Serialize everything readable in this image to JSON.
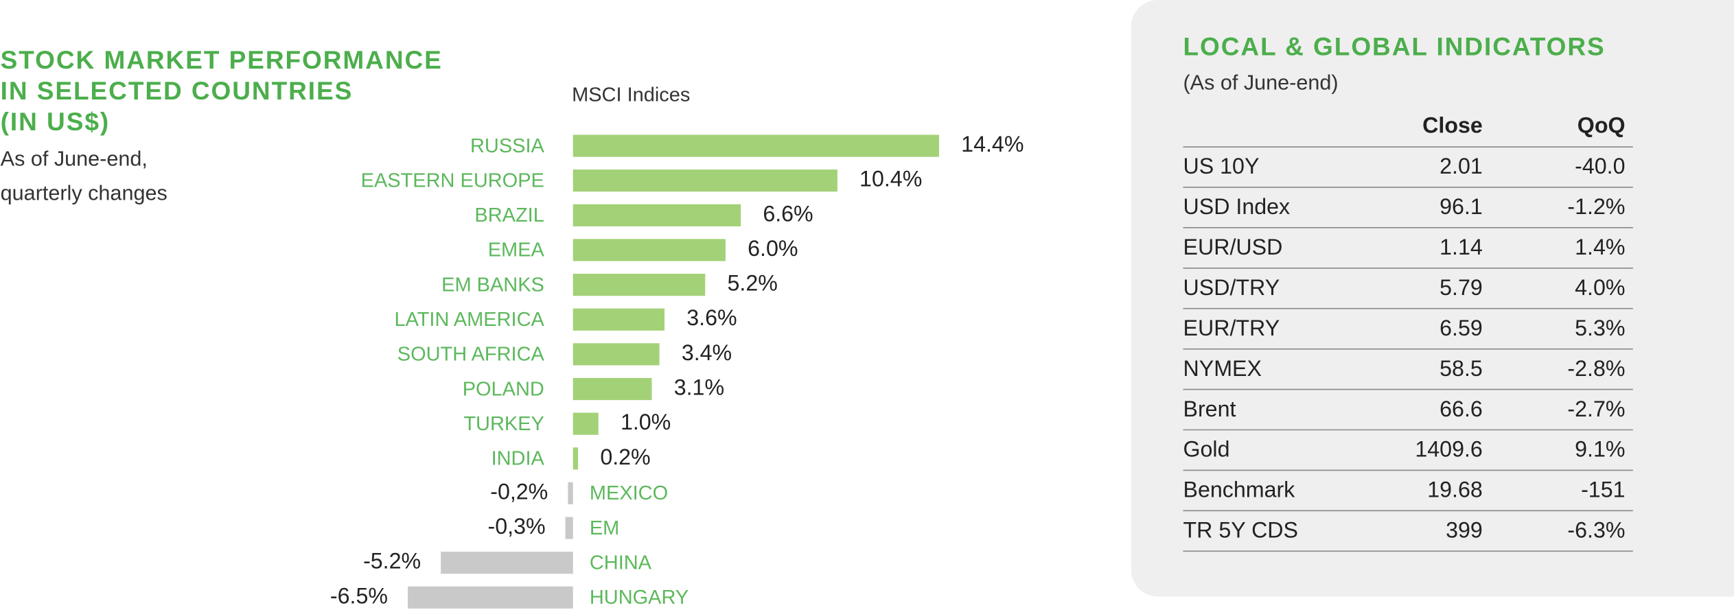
{
  "chart_data": {
    "type": "bar",
    "orientation": "horizontal",
    "title": [
      "STOCK MARKET PERFORMANCE",
      "IN SELECTED COUNTRIES",
      "(IN US$)"
    ],
    "subtitle": [
      "As of June-end,",
      "quarterly changes"
    ],
    "axis_label": "MSCI Indices",
    "categories": [
      "RUSSIA",
      "EASTERN EUROPE",
      "BRAZIL",
      "EMEA",
      "EM BANKS",
      "LATIN AMERICA",
      "SOUTH AFRICA",
      "POLAND",
      "TURKEY",
      "INDIA",
      "MEXICO",
      "EM",
      "CHINA",
      "HUNGARY"
    ],
    "values": [
      14.4,
      10.4,
      6.6,
      6.0,
      5.2,
      3.6,
      3.4,
      3.1,
      1.0,
      0.2,
      -0.2,
      -0.3,
      -5.2,
      -6.5
    ],
    "value_labels": [
      "14.4%",
      "10.4%",
      "6.6%",
      "6.0%",
      "5.2%",
      "3.6%",
      "3.4%",
      "3.1%",
      "1.0%",
      "0.2%",
      "-0,2%",
      "-0,3%",
      "-5.2%",
      "-6.5%"
    ],
    "colors": {
      "positive": "#a3d177",
      "negative": "#c9c9c9"
    }
  },
  "table": {
    "title": "LOCAL & GLOBAL INDICATORS",
    "subtitle": "(As of June-end)",
    "columns": [
      "Close",
      "QoQ"
    ],
    "rows": [
      [
        "US 10Y",
        "2.01",
        "-40.0"
      ],
      [
        "USD Index",
        "96.1",
        "-1.2%"
      ],
      [
        "EUR/USD",
        "1.14",
        "1.4%"
      ],
      [
        "USD/TRY",
        "5.79",
        "4.0%"
      ],
      [
        "EUR/TRY",
        "6.59",
        "5.3%"
      ],
      [
        "NYMEX",
        "58.5",
        "-2.8%"
      ],
      [
        "Brent",
        "66.6",
        "-2.7%"
      ],
      [
        "Gold",
        "1409.6",
        "9.1%"
      ],
      [
        "Benchmark",
        "19.68",
        "-151"
      ],
      [
        "TR 5Y CDS",
        "399",
        "-6.3%"
      ]
    ]
  }
}
